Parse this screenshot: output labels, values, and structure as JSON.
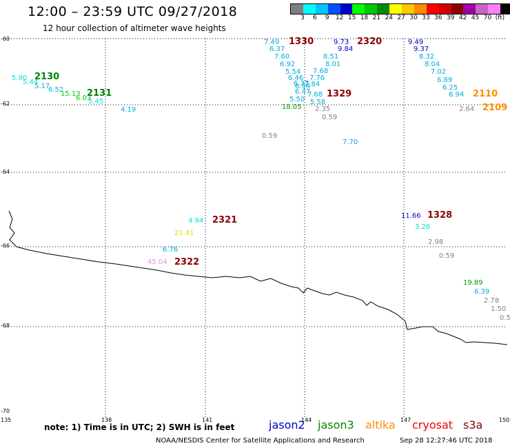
{
  "header": {
    "title": "12:00 – 23:59 UTC 09/27/2018",
    "subtitle": "12 hour collection of altimeter wave heights"
  },
  "scale": {
    "colors": [
      "#7f7f7f",
      "#00ffff",
      "#00c8ff",
      "#0050ff",
      "#0000c8",
      "#00ff00",
      "#00c800",
      "#008c00",
      "#ffff00",
      "#ffc800",
      "#ff8c00",
      "#ff0000",
      "#d20000",
      "#8c0000",
      "#a000a0",
      "#c864c8",
      "#ff80ff",
      "#000000"
    ],
    "labels": [
      "3",
      "6",
      "9",
      "12",
      "15",
      "18",
      "21",
      "24",
      "27",
      "30",
      "33",
      "36",
      "39",
      "42",
      "45",
      "70",
      "(ft)"
    ]
  },
  "axes": {
    "lon_labels": [
      "135",
      "138",
      "141",
      "144",
      "147",
      "150"
    ],
    "lat_labels": [
      "-60",
      "-62",
      "-64",
      "-66",
      "-68",
      "-70"
    ]
  },
  "observations": [
    {
      "text": "7.49",
      "color": "#00aadd"
    },
    {
      "text": "6.37",
      "color": "#00aadd"
    },
    {
      "text": "7.60",
      "color": "#00aadd"
    },
    {
      "text": "6.92",
      "color": "#00aadd"
    },
    {
      "text": "5.54",
      "color": "#00aadd"
    },
    {
      "text": "6.46",
      "color": "#00aadd"
    },
    {
      "text": "6.37",
      "color": "#00aadd"
    },
    {
      "text": "6.94",
      "color": "#00aadd"
    },
    {
      "text": "6.47",
      "color": "#00aadd"
    },
    {
      "text": "5.50",
      "color": "#00aadd"
    },
    {
      "text": "18.05",
      "color": "#009900"
    },
    {
      "text": "9.73",
      "color": "#0000cc"
    },
    {
      "text": "9.84",
      "color": "#0000cc"
    },
    {
      "text": "8.51",
      "color": "#00aadd"
    },
    {
      "text": "8.01",
      "color": "#00aadd"
    },
    {
      "text": "7.68",
      "color": "#00aadd"
    },
    {
      "text": "7.76",
      "color": "#00aadd"
    },
    {
      "text": "7.84",
      "color": "#00aadd"
    },
    {
      "text": "7.68",
      "color": "#00aadd"
    },
    {
      "text": "5.58",
      "color": "#00aadd"
    },
    {
      "text": "2.35",
      "color": "#808080"
    },
    {
      "text": "0.59",
      "color": "#808080"
    },
    {
      "text": "0.59",
      "color": "#808080"
    },
    {
      "text": "7.70",
      "color": "#00aadd"
    },
    {
      "text": "9.49",
      "color": "#0000cc"
    },
    {
      "text": "9.37",
      "color": "#0000cc"
    },
    {
      "text": "8.32",
      "color": "#00aadd"
    },
    {
      "text": "8.04",
      "color": "#00aadd"
    },
    {
      "text": "7.02",
      "color": "#00aadd"
    },
    {
      "text": "6.89",
      "color": "#00aadd"
    },
    {
      "text": "6.25",
      "color": "#00aadd"
    },
    {
      "text": "6.94",
      "color": "#00aadd"
    },
    {
      "text": "2.64",
      "color": "#808080"
    },
    {
      "text": "5.90",
      "color": "#00dddd"
    },
    {
      "text": "5.44",
      "color": "#00dddd"
    },
    {
      "text": "5.17",
      "color": "#00aadd"
    },
    {
      "text": "6.52",
      "color": "#00aadd"
    },
    {
      "text": "15.13",
      "color": "#00cc00"
    },
    {
      "text": "6.03",
      "color": "#00cc00"
    },
    {
      "text": "5.45",
      "color": "#00dddd"
    },
    {
      "text": "4.19",
      "color": "#00aadd"
    },
    {
      "text": "4.94",
      "color": "#00dddd"
    },
    {
      "text": "21.41",
      "color": "#dddd00"
    },
    {
      "text": "6.76",
      "color": "#00aadd"
    },
    {
      "text": "45.04",
      "color": "#ee88ee"
    },
    {
      "text": "11.66",
      "color": "#0000cc"
    },
    {
      "text": "3.26",
      "color": "#00dddd"
    },
    {
      "text": "2.98",
      "color": "#808080"
    },
    {
      "text": "0.59",
      "color": "#808080"
    },
    {
      "text": "19.89",
      "color": "#009900"
    },
    {
      "text": "6.39",
      "color": "#00aadd"
    },
    {
      "text": "2.78",
      "color": "#808080"
    },
    {
      "text": "1.50",
      "color": "#808080"
    },
    {
      "text": "0.5",
      "color": "#808080"
    }
  ],
  "sites": [
    {
      "text": "1330",
      "color": "#8c0000"
    },
    {
      "text": "2320",
      "color": "#8c0000"
    },
    {
      "text": "1329",
      "color": "#8c0000"
    },
    {
      "text": "2130",
      "color": "#008000"
    },
    {
      "text": "2131",
      "color": "#008000"
    },
    {
      "text": "2110",
      "color": "#ff8c00"
    },
    {
      "text": "2109",
      "color": "#ff8c00"
    },
    {
      "text": "2321",
      "color": "#8c0000"
    },
    {
      "text": "2322",
      "color": "#8c0000"
    },
    {
      "text": "1328",
      "color": "#8c0000"
    }
  ],
  "footer": {
    "note": "note: 1) Time is in UTC; 2) SWH is in feet",
    "satellites": [
      {
        "name": "jason2",
        "color": "#0000cc"
      },
      {
        "name": "jason3",
        "color": "#008800"
      },
      {
        "name": "altika",
        "color": "#ff8c00"
      },
      {
        "name": "cryosat",
        "color": "#ee0000"
      },
      {
        "name": "s3a",
        "color": "#8c0000"
      }
    ],
    "credit": "NOAA/NESDIS Center for Satellite Applications and Research",
    "timestamp": "Sep 28 12:27:46 UTC 2018"
  }
}
